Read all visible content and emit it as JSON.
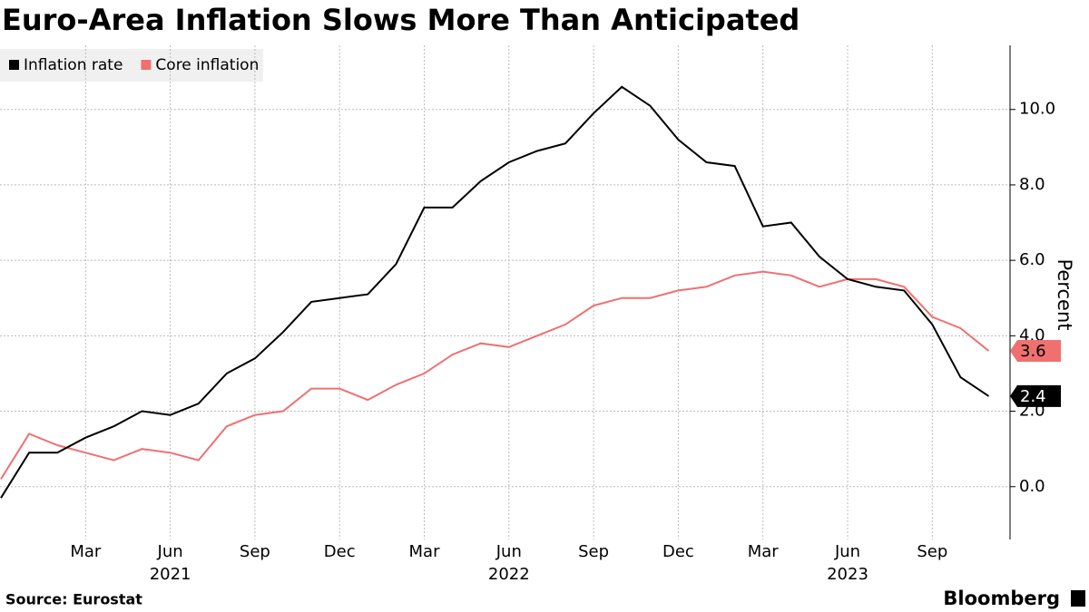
{
  "chart_data": {
    "type": "line",
    "title": "Euro-Area Inflation Slows More Than Anticipated",
    "y_label": "Percent",
    "source": "Source: Eurostat",
    "brand": "Bloomberg",
    "categories": [
      null,
      null,
      null,
      "Mar",
      null,
      null,
      "Jun",
      null,
      null,
      "Sep",
      null,
      null,
      "Dec",
      null,
      null,
      "Mar",
      null,
      null,
      "Jun",
      null,
      null,
      "Sep",
      null,
      null,
      "Dec",
      null,
      null,
      "Mar",
      null,
      null,
      "Jun",
      null,
      null,
      "Sep",
      null,
      null
    ],
    "year_labels": [
      {
        "category": 6,
        "label": "2021"
      },
      {
        "category": 18,
        "label": "2022"
      },
      {
        "category": 30,
        "label": "2023"
      }
    ],
    "series": [
      {
        "name": "Inflation rate",
        "color": "#000000",
        "last_label": "2.4",
        "values": [
          -0.3,
          0.9,
          0.9,
          1.3,
          1.6,
          2.0,
          1.9,
          2.2,
          3.0,
          3.4,
          4.1,
          4.9,
          5.0,
          5.1,
          5.9,
          7.4,
          7.4,
          8.1,
          8.6,
          8.9,
          9.1,
          9.9,
          10.6,
          10.1,
          9.2,
          8.6,
          8.5,
          6.9,
          7.0,
          6.1,
          5.5,
          5.3,
          5.2,
          4.3,
          2.9,
          2.4
        ]
      },
      {
        "name": "Core inflation",
        "color": "#f07070",
        "last_label": "3.6",
        "values": [
          0.2,
          1.4,
          1.1,
          0.9,
          0.7,
          1.0,
          0.9,
          0.7,
          1.6,
          1.9,
          2.0,
          2.6,
          2.6,
          2.3,
          2.7,
          3.0,
          3.5,
          3.8,
          3.7,
          4.0,
          4.3,
          4.8,
          5.0,
          5.0,
          5.2,
          5.3,
          5.6,
          5.7,
          5.6,
          5.3,
          5.5,
          5.5,
          5.3,
          4.5,
          4.2,
          3.6
        ]
      }
    ],
    "ylim": [
      -1.4,
      11.7
    ],
    "yticks": [
      {
        "value": 0,
        "label": "0.0"
      },
      {
        "value": 2,
        "label": "2.0"
      },
      {
        "value": 4,
        "label": "4.0"
      },
      {
        "value": 6,
        "label": "6.0"
      },
      {
        "value": 8,
        "label": "8.0"
      },
      {
        "value": 10,
        "label": "10.0"
      }
    ],
    "grid": true
  }
}
